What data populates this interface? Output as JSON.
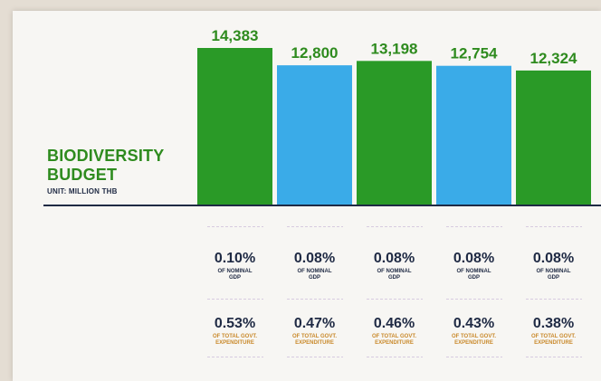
{
  "chart_data": {
    "type": "bar",
    "title_line1": "BIODIVERSITY",
    "title_line2": "BUDGET",
    "unit": "UNIT: MILLION THB",
    "values": [
      14383,
      12800,
      13198,
      12754,
      12324
    ],
    "value_labels": [
      "14,383",
      "12,800",
      "13,198",
      "12,754",
      "12,324"
    ],
    "colors": [
      "#2a9a27",
      "#3aabe8",
      "#2a9a27",
      "#3aabe8",
      "#2a9a27"
    ],
    "label_color": "#2e8b1e",
    "gdp_share": [
      "0.10%",
      "0.08%",
      "0.08%",
      "0.08%",
      "0.08%"
    ],
    "gdp_label": "OF NOMINAL GDP",
    "exp_share": [
      "0.53%",
      "0.47%",
      "0.46%",
      "0.43%",
      "0.38%"
    ],
    "exp_label": "OF TOTAL GOVT. EXPENDITURE"
  }
}
